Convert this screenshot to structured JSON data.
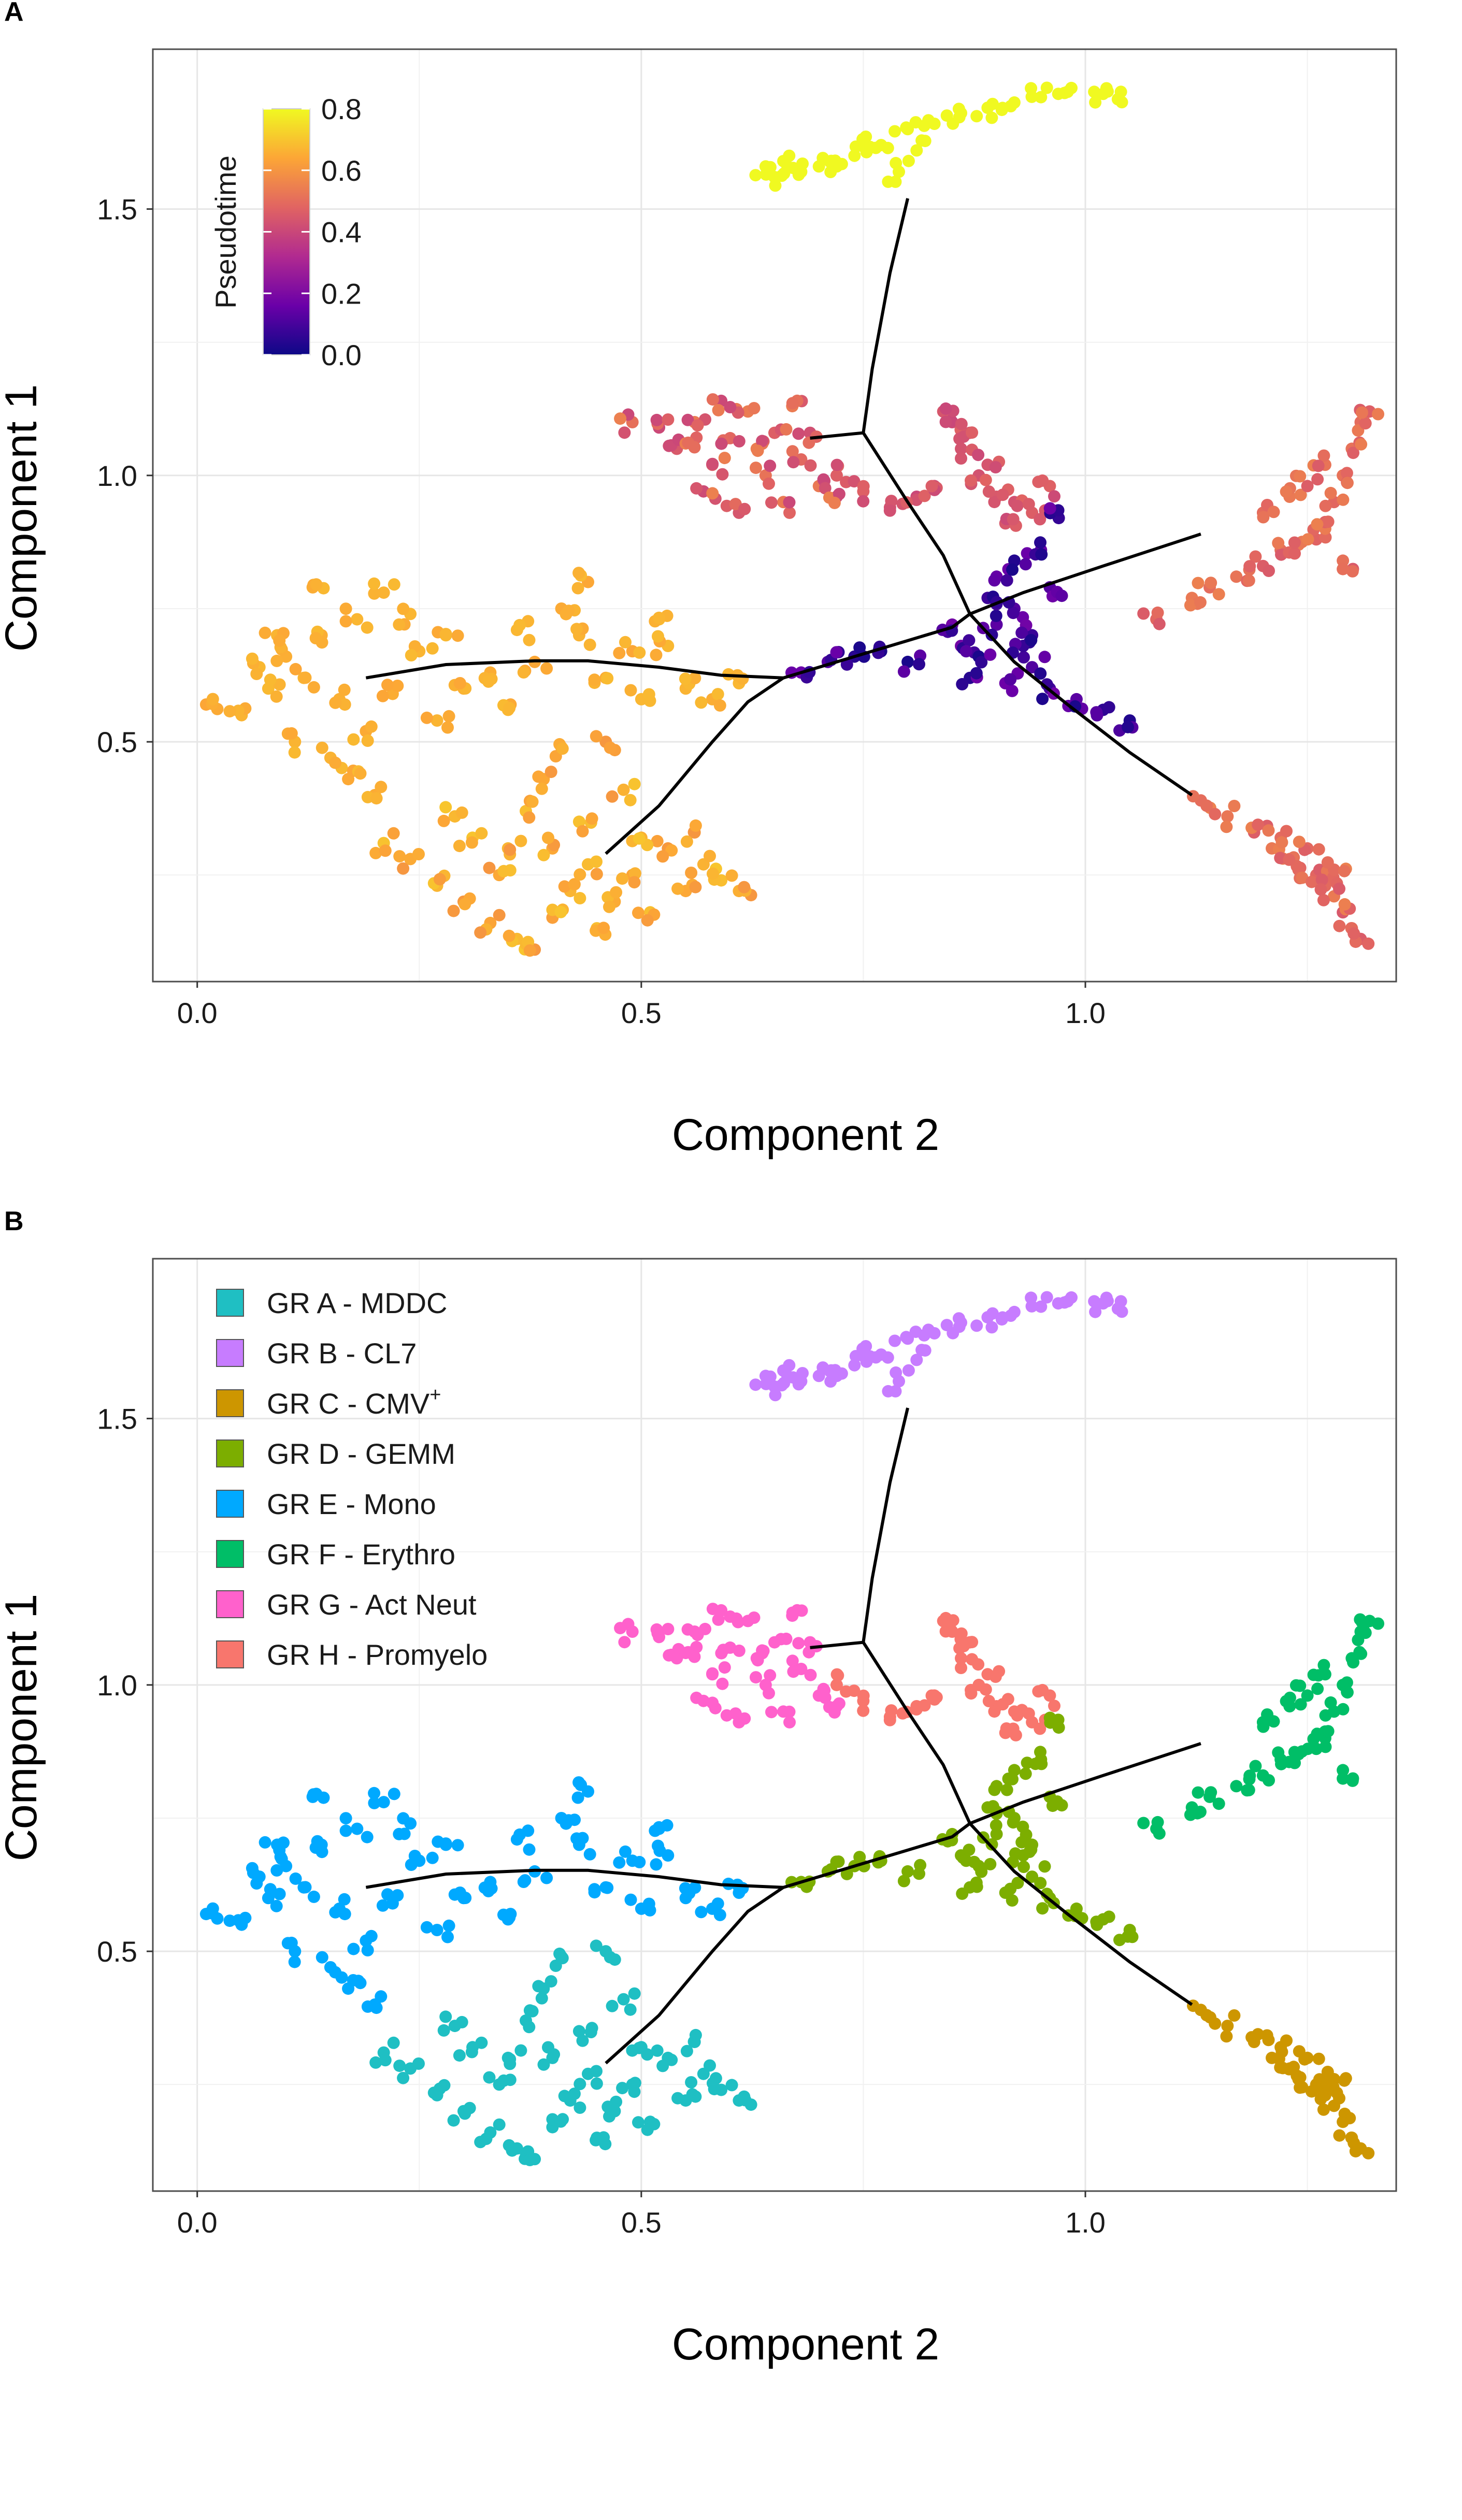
{
  "chart_data": [
    {
      "panel": "A",
      "type": "scatter",
      "xlabel": "Component 2",
      "ylabel": "Component 1",
      "xlim": [
        -0.05,
        1.35
      ],
      "ylim": [
        0.05,
        1.8
      ],
      "x_ticks": [
        0.0,
        0.5,
        1.0
      ],
      "x_tick_labels": [
        "0.0",
        "0.5",
        "1.0"
      ],
      "y_ticks": [
        0.5,
        1.0,
        1.5
      ],
      "y_tick_labels": [
        "0.5",
        "1.0",
        "1.5"
      ],
      "grid": true,
      "color_by": "Pseudotime",
      "colorbar": {
        "title": "Pseudotime",
        "range": [
          0.0,
          0.8
        ],
        "ticks": [
          0.8,
          0.6,
          0.4,
          0.2,
          0.0
        ],
        "tick_labels": [
          "0.8",
          "0.6",
          "0.4",
          "0.2",
          "0.0"
        ],
        "colors": [
          "#0d0887",
          "#6a00a8",
          "#b12a90",
          "#e16462",
          "#fca636",
          "#f0f921"
        ],
        "placement": "top-left"
      }
    },
    {
      "panel": "B",
      "type": "scatter",
      "xlabel": "Component 2",
      "ylabel": "Component 1",
      "xlim": [
        -0.05,
        1.35
      ],
      "ylim": [
        0.05,
        1.8
      ],
      "x_ticks": [
        0.0,
        0.5,
        1.0
      ],
      "x_tick_labels": [
        "0.0",
        "0.5",
        "1.0"
      ],
      "y_ticks": [
        0.5,
        1.0,
        1.5
      ],
      "y_tick_labels": [
        "0.5",
        "1.0",
        "1.5"
      ],
      "grid": true,
      "color_by": "Group",
      "legend": {
        "placement": "top-left",
        "entries": [
          {
            "key": "A",
            "label": "GR A - MDDC",
            "color": "#1fbfc3"
          },
          {
            "key": "B",
            "label": "GR B - CL7",
            "color": "#c77cff"
          },
          {
            "key": "C",
            "label": "GR C - CMV",
            "sup": "+",
            "color": "#cd9600"
          },
          {
            "key": "D",
            "label": "GR D - GEMM",
            "color": "#7cae00"
          },
          {
            "key": "E",
            "label": "GR E - Mono",
            "color": "#00a9ff"
          },
          {
            "key": "F",
            "label": "GR F - Erythro",
            "color": "#00be67"
          },
          {
            "key": "G",
            "label": "GR G - Act Neut",
            "color": "#ff61cc"
          },
          {
            "key": "H",
            "label": "GR H - Promyelo",
            "color": "#f8766d"
          }
        ]
      }
    }
  ],
  "shared": {
    "trajectory_segments": [
      [
        [
          0.19,
          0.62
        ],
        [
          0.28,
          0.645
        ],
        [
          0.38,
          0.652
        ],
        [
          0.44,
          0.652
        ],
        [
          0.52,
          0.64
        ],
        [
          0.59,
          0.625
        ],
        [
          0.66,
          0.62
        ]
      ],
      [
        [
          0.46,
          0.29
        ],
        [
          0.52,
          0.38
        ],
        [
          0.58,
          0.5
        ],
        [
          0.62,
          0.575
        ],
        [
          0.66,
          0.62
        ]
      ],
      [
        [
          0.66,
          0.62
        ],
        [
          0.73,
          0.655
        ],
        [
          0.8,
          0.69
        ],
        [
          0.85,
          0.715
        ],
        [
          0.87,
          0.74
        ]
      ],
      [
        [
          0.87,
          0.74
        ],
        [
          0.93,
          0.78
        ],
        [
          1.02,
          0.83
        ],
        [
          1.13,
          0.89
        ]
      ],
      [
        [
          0.87,
          0.74
        ],
        [
          0.92,
          0.65
        ],
        [
          0.98,
          0.57
        ],
        [
          1.05,
          0.48
        ],
        [
          1.12,
          0.4
        ]
      ],
      [
        [
          0.87,
          0.74
        ],
        [
          0.84,
          0.85
        ],
        [
          0.8,
          0.95
        ],
        [
          0.75,
          1.08
        ]
      ],
      [
        [
          0.69,
          1.07
        ],
        [
          0.75,
          1.08
        ]
      ],
      [
        [
          0.75,
          1.08
        ],
        [
          0.76,
          1.2
        ],
        [
          0.78,
          1.38
        ],
        [
          0.8,
          1.52
        ]
      ]
    ],
    "clusters": [
      {
        "group": "E",
        "pseudotime": [
          0.64,
          0.68
        ],
        "points": [
          [
            0.01,
            0.57
          ],
          [
            0.05,
            0.55
          ],
          [
            0.08,
            0.6
          ],
          [
            0.1,
            0.66
          ],
          [
            0.12,
            0.62
          ],
          [
            0.14,
            0.7
          ],
          [
            0.13,
            0.79
          ],
          [
            0.16,
            0.58
          ],
          [
            0.18,
            0.73
          ],
          [
            0.21,
            0.78
          ],
          [
            0.24,
            0.74
          ],
          [
            0.11,
            0.5
          ],
          [
            0.15,
            0.47
          ],
          [
            0.19,
            0.52
          ],
          [
            0.17,
            0.43
          ],
          [
            0.2,
            0.4
          ],
          [
            0.25,
            0.67
          ],
          [
            0.28,
            0.7
          ],
          [
            0.3,
            0.6
          ],
          [
            0.33,
            0.63
          ],
          [
            0.36,
            0.71
          ],
          [
            0.38,
            0.65
          ],
          [
            0.41,
            0.75
          ],
          [
            0.44,
            0.8
          ],
          [
            0.46,
            0.62
          ],
          [
            0.49,
            0.67
          ],
          [
            0.52,
            0.73
          ],
          [
            0.55,
            0.6
          ],
          [
            0.58,
            0.58
          ],
          [
            0.61,
            0.61
          ],
          [
            0.07,
            0.64
          ],
          [
            0.22,
            0.59
          ],
          [
            0.27,
            0.54
          ],
          [
            0.35,
            0.56
          ],
          [
            0.09,
            0.7
          ],
          [
            0.43,
            0.7
          ],
          [
            0.5,
            0.58
          ],
          [
            0.53,
            0.68
          ]
        ]
      },
      {
        "group": "A",
        "pseudotime": [
          0.6,
          0.7
        ],
        "points": [
          [
            0.21,
            0.31
          ],
          [
            0.24,
            0.28
          ],
          [
            0.27,
            0.23
          ],
          [
            0.3,
            0.2
          ],
          [
            0.33,
            0.16
          ],
          [
            0.36,
            0.13
          ],
          [
            0.38,
            0.11
          ],
          [
            0.4,
            0.17
          ],
          [
            0.42,
            0.22
          ],
          [
            0.44,
            0.27
          ],
          [
            0.45,
            0.15
          ],
          [
            0.47,
            0.2
          ],
          [
            0.49,
            0.25
          ],
          [
            0.51,
            0.18
          ],
          [
            0.53,
            0.3
          ],
          [
            0.55,
            0.22
          ],
          [
            0.57,
            0.27
          ],
          [
            0.59,
            0.24
          ],
          [
            0.61,
            0.22
          ],
          [
            0.35,
            0.3
          ],
          [
            0.37,
            0.37
          ],
          [
            0.39,
            0.43
          ],
          [
            0.41,
            0.49
          ],
          [
            0.43,
            0.35
          ],
          [
            0.46,
            0.5
          ],
          [
            0.48,
            0.41
          ],
          [
            0.31,
            0.32
          ],
          [
            0.29,
            0.36
          ],
          [
            0.5,
            0.32
          ],
          [
            0.4,
            0.3
          ],
          [
            0.56,
            0.33
          ],
          [
            0.34,
            0.25
          ]
        ]
      },
      {
        "group": "B",
        "pseudotime": [
          0.85,
          0.86
        ],
        "points": [
          [
            0.64,
            1.58
          ],
          [
            0.66,
            1.59
          ],
          [
            0.68,
            1.57
          ],
          [
            0.7,
            1.58
          ],
          [
            0.72,
            1.58
          ],
          [
            0.74,
            1.6
          ],
          [
            0.77,
            1.62
          ],
          [
            0.8,
            1.65
          ],
          [
            0.83,
            1.66
          ],
          [
            0.86,
            1.68
          ],
          [
            0.89,
            1.69
          ],
          [
            0.92,
            1.7
          ],
          [
            0.95,
            1.71
          ],
          [
            0.98,
            1.72
          ],
          [
            1.01,
            1.72
          ],
          [
            1.04,
            1.72
          ],
          [
            0.65,
            1.56
          ],
          [
            0.79,
            1.57
          ],
          [
            0.81,
            1.61
          ],
          [
            0.75,
            1.63
          ]
        ]
      },
      {
        "group": "G",
        "pseudotime": [
          0.4,
          0.55
        ],
        "points": [
          [
            0.49,
            1.1
          ],
          [
            0.52,
            1.09
          ],
          [
            0.54,
            1.05
          ],
          [
            0.56,
            1.1
          ],
          [
            0.58,
            1.02
          ],
          [
            0.6,
            1.07
          ],
          [
            0.62,
            1.12
          ],
          [
            0.64,
            1.0
          ],
          [
            0.65,
            1.08
          ],
          [
            0.67,
            1.13
          ],
          [
            0.68,
            1.03
          ],
          [
            0.7,
            0.98
          ],
          [
            0.72,
            0.96
          ],
          [
            0.57,
            0.97
          ],
          [
            0.61,
            0.93
          ],
          [
            0.66,
            0.95
          ],
          [
            0.55,
            1.06
          ],
          [
            0.63,
            1.05
          ],
          [
            0.69,
            1.08
          ],
          [
            0.59,
            1.14
          ]
        ]
      },
      {
        "group": "H",
        "pseudotime": [
          0.4,
          0.48
        ],
        "points": [
          [
            0.72,
            1.0
          ],
          [
            0.75,
            0.97
          ],
          [
            0.78,
            0.94
          ],
          [
            0.81,
            0.96
          ],
          [
            0.83,
            0.98
          ],
          [
            0.85,
            1.1
          ],
          [
            0.86,
            1.05
          ],
          [
            0.88,
            1.0
          ],
          [
            0.9,
            0.96
          ],
          [
            0.92,
            0.95
          ],
          [
            0.94,
            0.93
          ],
          [
            0.96,
            0.98
          ],
          [
            0.84,
            1.12
          ],
          [
            0.87,
            1.08
          ],
          [
            0.89,
            1.02
          ],
          [
            0.91,
            0.91
          ]
        ]
      },
      {
        "group": "D",
        "pseudotime": [
          0.02,
          0.18
        ],
        "points": [
          [
            0.68,
            0.63
          ],
          [
            0.71,
            0.65
          ],
          [
            0.74,
            0.66
          ],
          [
            0.77,
            0.67
          ],
          [
            0.8,
            0.65
          ],
          [
            0.86,
            0.68
          ],
          [
            0.88,
            0.66
          ],
          [
            0.9,
            0.72
          ],
          [
            0.92,
            0.75
          ],
          [
            0.94,
            0.7
          ],
          [
            0.96,
            0.79
          ],
          [
            0.9,
            0.81
          ],
          [
            0.92,
            0.84
          ],
          [
            0.94,
            0.64
          ],
          [
            0.96,
            0.6
          ],
          [
            0.99,
            0.58
          ],
          [
            1.02,
            0.56
          ],
          [
            1.05,
            0.54
          ],
          [
            0.87,
            0.62
          ],
          [
            0.89,
            0.77
          ],
          [
            0.93,
            0.68
          ],
          [
            0.91,
            0.61
          ],
          [
            0.95,
            0.86
          ],
          [
            0.97,
            0.92
          ],
          [
            0.85,
            0.72
          ]
        ]
      },
      {
        "group": "F",
        "pseudotime": [
          0.45,
          0.55
        ],
        "points": [
          [
            1.08,
            0.73
          ],
          [
            1.12,
            0.77
          ],
          [
            1.14,
            0.79
          ],
          [
            1.17,
            0.81
          ],
          [
            1.2,
            0.83
          ],
          [
            1.22,
            0.86
          ],
          [
            1.24,
            0.87
          ],
          [
            1.26,
            0.88
          ],
          [
            1.27,
            0.9
          ],
          [
            1.28,
            0.95
          ],
          [
            1.29,
            1.0
          ],
          [
            1.3,
            1.05
          ],
          [
            1.31,
            1.1
          ],
          [
            1.32,
            1.12
          ],
          [
            1.23,
            0.96
          ],
          [
            1.25,
            0.98
          ],
          [
            1.2,
            0.93
          ],
          [
            1.27,
            1.02
          ],
          [
            1.29,
            0.84
          ]
        ]
      },
      {
        "group": "C",
        "pseudotime": [
          0.45,
          0.55
        ],
        "points": [
          [
            1.13,
            0.39
          ],
          [
            1.16,
            0.36
          ],
          [
            1.19,
            0.33
          ],
          [
            1.21,
            0.3
          ],
          [
            1.23,
            0.28
          ],
          [
            1.24,
            0.26
          ],
          [
            1.26,
            0.25
          ],
          [
            1.27,
            0.23
          ],
          [
            1.28,
            0.21
          ],
          [
            1.29,
            0.18
          ],
          [
            1.3,
            0.15
          ],
          [
            1.31,
            0.13
          ],
          [
            1.22,
            0.32
          ],
          [
            1.25,
            0.3
          ],
          [
            1.28,
            0.26
          ]
        ]
      }
    ]
  }
}
